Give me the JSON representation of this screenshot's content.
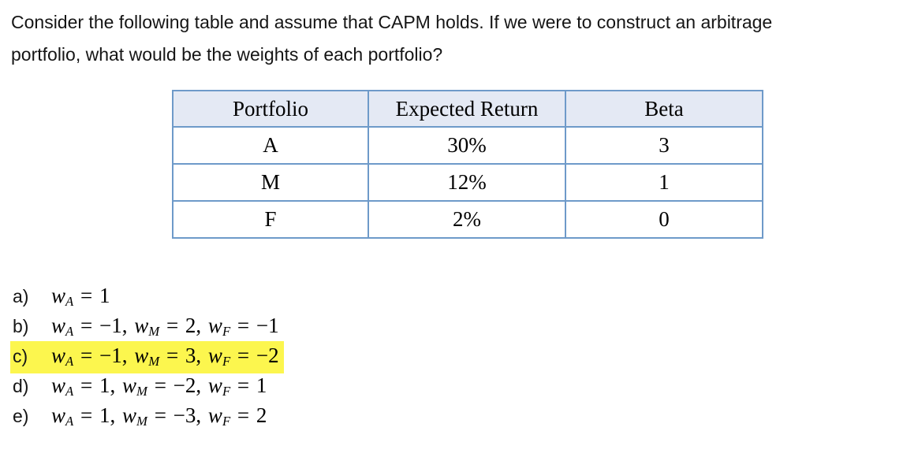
{
  "question": {
    "lines": [
      "Consider the following table and assume that CAPM holds. If we were to construct an arbitrage",
      "portfolio, what would be the weights of each portfolio?"
    ]
  },
  "table": {
    "headers": [
      "Portfolio",
      "Expected Return",
      "Beta"
    ],
    "rows": [
      [
        "A",
        "30%",
        "3"
      ],
      [
        "M",
        "12%",
        "1"
      ],
      [
        "F",
        "2%",
        "0"
      ]
    ]
  },
  "options": {
    "items": [
      {
        "label": "a)",
        "highlight": false,
        "terms": [
          {
            "variable": "w",
            "sub": "A",
            "rhs": " = 1"
          }
        ]
      },
      {
        "label": "b)",
        "highlight": false,
        "terms": [
          {
            "variable": "w",
            "sub": "A",
            "rhs": " = −1, "
          },
          {
            "variable": "w",
            "sub": "M",
            "rhs": " = 2, "
          },
          {
            "variable": "w",
            "sub": "F",
            "rhs": " = −1"
          }
        ]
      },
      {
        "label": "c)",
        "highlight": true,
        "terms": [
          {
            "variable": "w",
            "sub": "A",
            "rhs": " = −1, "
          },
          {
            "variable": "w",
            "sub": "M",
            "rhs": " = 3, "
          },
          {
            "variable": "w",
            "sub": "F",
            "rhs": " = −2"
          }
        ]
      },
      {
        "label": "d)",
        "highlight": false,
        "terms": [
          {
            "variable": "w",
            "sub": "A",
            "rhs": " = 1, "
          },
          {
            "variable": "w",
            "sub": "M",
            "rhs": " = −2, "
          },
          {
            "variable": "w",
            "sub": "F",
            "rhs": " = 1"
          }
        ]
      },
      {
        "label": "e)",
        "highlight": false,
        "terms": [
          {
            "variable": "w",
            "sub": "A",
            "rhs": " = 1, "
          },
          {
            "variable": "w",
            "sub": "M",
            "rhs": " = −3, "
          },
          {
            "variable": "w",
            "sub": "F",
            "rhs": " = 2"
          }
        ]
      }
    ]
  },
  "colors": {
    "highlight": "#fcf64e",
    "table_border": "#6e9ac9",
    "header_bg": "#e4e9f4",
    "text": "#151515"
  }
}
